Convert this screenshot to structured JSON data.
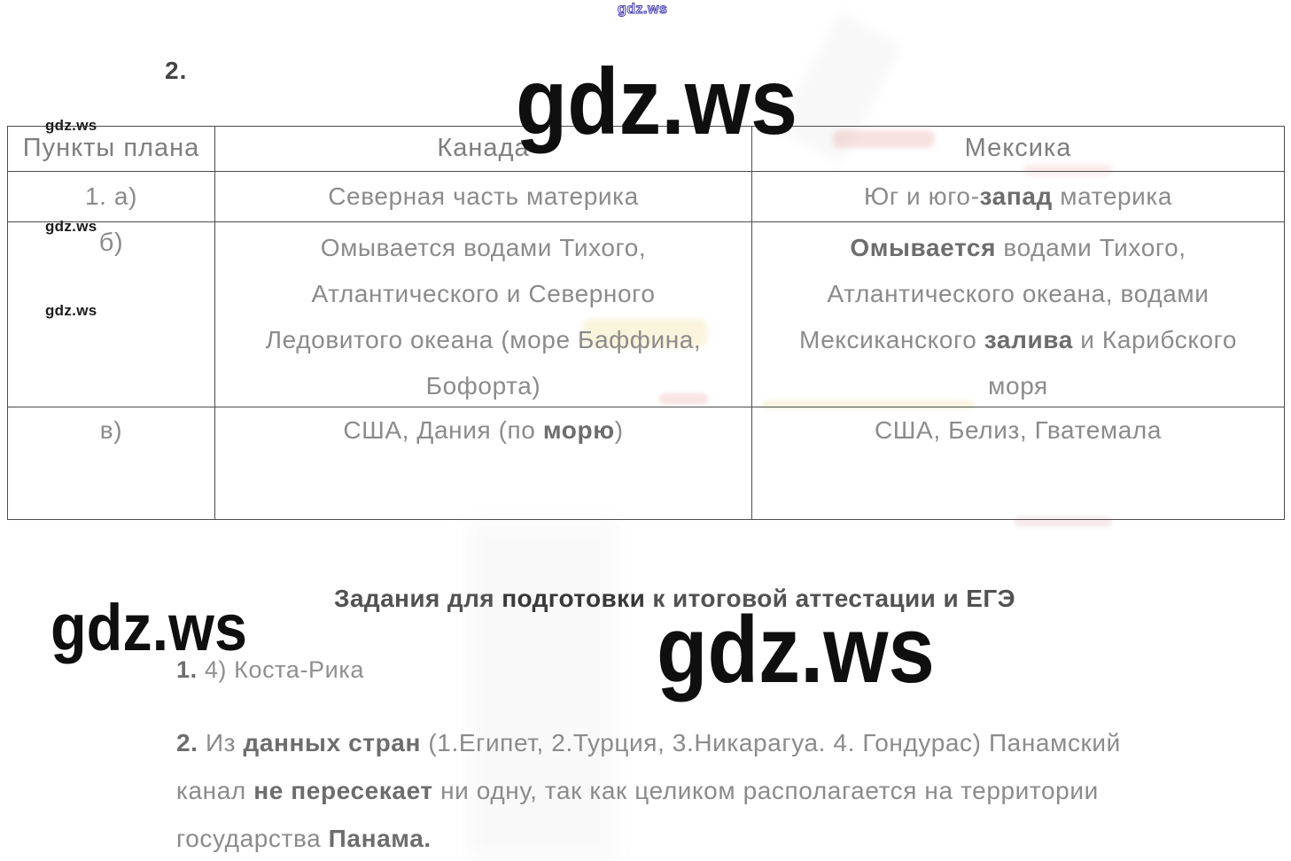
{
  "watermark": {
    "text": "gdz.ws"
  },
  "exercise_number": "2.",
  "table": {
    "headers": [
      "Пункты плана",
      "Канада",
      "Мексика"
    ],
    "rows": [
      {
        "label": "1. а)",
        "canada": [
          [
            {
              "text": "Северная часть материка",
              "bold": false
            }
          ]
        ],
        "mexico": [
          [
            {
              "text": "Юг и юго-",
              "bold": false
            },
            {
              "text": "запад",
              "bold": true
            },
            {
              "text": " материка",
              "bold": false
            }
          ]
        ]
      },
      {
        "label": "б)",
        "canada": [
          [
            {
              "text": "Омывается водами Тихого,",
              "bold": false
            }
          ],
          [
            {
              "text": "Атлантического и Северного",
              "bold": false
            }
          ],
          [
            {
              "text": "Ледовитого океана (море Баффина,",
              "bold": false
            }
          ],
          [
            {
              "text": "Бофорта)",
              "bold": false
            }
          ]
        ],
        "mexico": [
          [
            {
              "text": "Омывается",
              "bold": true
            },
            {
              "text": " водами Тихого,",
              "bold": false
            }
          ],
          [
            {
              "text": "Атлантического океана, водами",
              "bold": false
            }
          ],
          [
            {
              "text": "Мексиканского ",
              "bold": false
            },
            {
              "text": "залива",
              "bold": true
            },
            {
              "text": " и Карибского",
              "bold": false
            }
          ],
          [
            {
              "text": "моря",
              "bold": false
            }
          ]
        ]
      },
      {
        "label": "в)",
        "canada": [
          [
            {
              "text": "США, Дания (по ",
              "bold": false
            },
            {
              "text": "морю",
              "bold": true
            },
            {
              "text": ")",
              "bold": false
            }
          ]
        ],
        "mexico": [
          [
            {
              "text": "США, Белиз, Гватемала",
              "bold": false
            }
          ]
        ]
      }
    ]
  },
  "section": {
    "heading": [
      {
        "text": "Задания для ",
        "bold": false
      },
      {
        "text": "подготовки",
        "bold": true
      },
      {
        "text": " к итоговой аттестации и ЕГЭ",
        "bold": false
      }
    ],
    "item1": [
      {
        "text": "1.",
        "bold": true
      },
      {
        "text": " 4) Коста-Рика",
        "bold": false
      }
    ],
    "item2_lines": [
      [
        {
          "text": "2.",
          "bold": true
        },
        {
          "text": " Из ",
          "bold": false
        },
        {
          "text": "данных стран",
          "bold": true
        },
        {
          "text": " (1.Египет, 2.Турция, 3.Никарагуа. 4. Гондурас) Панамский",
          "bold": false
        }
      ],
      [
        {
          "text": "канал ",
          "bold": false
        },
        {
          "text": "не пересекает",
          "bold": true
        },
        {
          "text": " ни одну, так как целиком располагается на территории",
          "bold": false
        }
      ],
      [
        {
          "text": "государства ",
          "bold": false
        },
        {
          "text": "Панама.",
          "bold": true
        }
      ]
    ]
  },
  "colors": {
    "watermark_outline": "#4038ae",
    "table_border": "#4c4c4c",
    "body_text": "#8b8b8b"
  }
}
